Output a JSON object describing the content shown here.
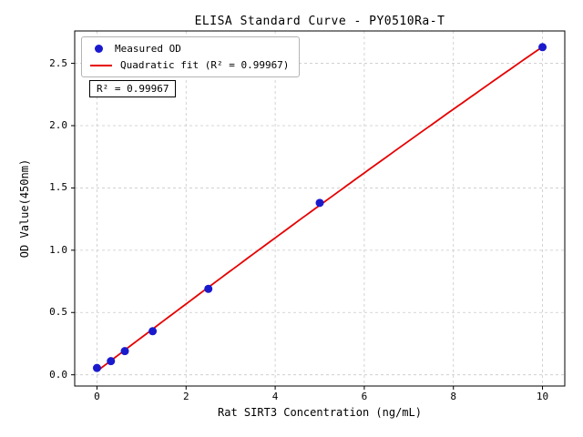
{
  "chart_data": {
    "type": "scatter",
    "title": "ELISA Standard Curve - PY0510Ra-T",
    "xlabel": "Rat SIRT3 Concentration (ng/mL)",
    "ylabel": "OD Value(450nm)",
    "series": [
      {
        "name": "Measured OD",
        "type": "scatter",
        "x": [
          0,
          0.3125,
          0.625,
          1.25,
          2.5,
          5,
          10
        ],
        "y": [
          0.055,
          0.11,
          0.19,
          0.35,
          0.69,
          1.38,
          2.63
        ]
      },
      {
        "name": "Quadratic fit (R² = 0.99967)",
        "type": "line",
        "fit": "quadratic",
        "x_range": [
          0,
          10
        ]
      }
    ],
    "legend": [
      "Measured OD",
      "Quadratic fit (R² = 0.99967)"
    ],
    "legend_position": "upper left",
    "annotation": "R² = 0.99967",
    "r_squared": 0.99967,
    "xlim": [
      -0.5,
      10.5
    ],
    "ylim": [
      -0.09,
      2.76
    ],
    "x_ticks": [
      0,
      2,
      4,
      6,
      8,
      10
    ],
    "x_tick_labels": [
      "0",
      "2",
      "4",
      "6",
      "8",
      "10"
    ],
    "y_ticks": [
      0.0,
      0.5,
      1.0,
      1.5,
      2.0,
      2.5
    ],
    "y_tick_labels": [
      "0.0",
      "0.5",
      "1.0",
      "1.5",
      "2.0",
      "2.5"
    ],
    "grid": true,
    "colors": {
      "point": "#1a1acd",
      "line": "#e60000",
      "grid": "#c9c9c9",
      "axis": "#000000"
    }
  }
}
